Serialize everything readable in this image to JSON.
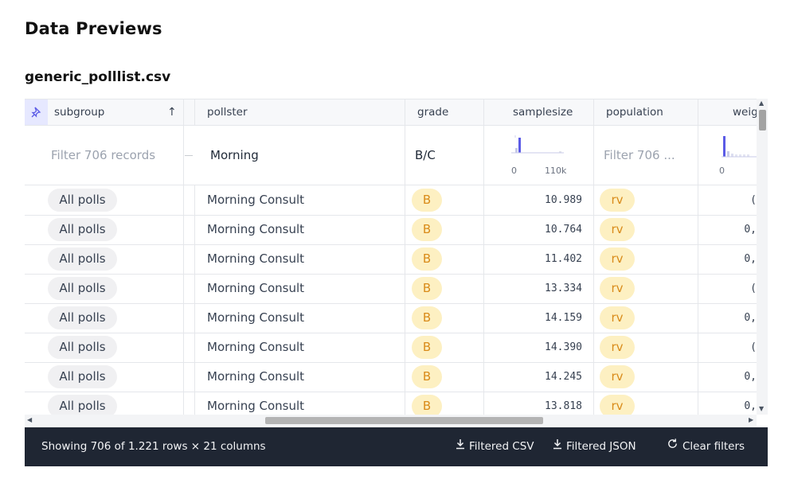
{
  "page_title": "Data Previews",
  "file_name": "generic_polllist.csv",
  "columns": [
    {
      "key": "subgroup",
      "label": "subgroup"
    },
    {
      "key": "pollster",
      "label": "pollster"
    },
    {
      "key": "grade",
      "label": "grade"
    },
    {
      "key": "samplesize",
      "label": "samplesize"
    },
    {
      "key": "population",
      "label": "population"
    },
    {
      "key": "weight",
      "label": "weig"
    }
  ],
  "filters": {
    "subgroup_placeholder": "Filter 706 records",
    "pollster_value": "Morning",
    "grade_value": "B/C",
    "samplesize_axis": {
      "min": "0",
      "max": "110k"
    },
    "population_placeholder": "Filter 706 ...",
    "weight_axis": {
      "min": "0"
    }
  },
  "rows": [
    {
      "subgroup": "All polls",
      "pollster": "Morning Consult",
      "grade": "B",
      "samplesize": "10.989",
      "population": "rv",
      "weight": "("
    },
    {
      "subgroup": "All polls",
      "pollster": "Morning Consult",
      "grade": "B",
      "samplesize": "10.764",
      "population": "rv",
      "weight": "0,"
    },
    {
      "subgroup": "All polls",
      "pollster": "Morning Consult",
      "grade": "B",
      "samplesize": "11.402",
      "population": "rv",
      "weight": "0,"
    },
    {
      "subgroup": "All polls",
      "pollster": "Morning Consult",
      "grade": "B",
      "samplesize": "13.334",
      "population": "rv",
      "weight": "("
    },
    {
      "subgroup": "All polls",
      "pollster": "Morning Consult",
      "grade": "B",
      "samplesize": "14.159",
      "population": "rv",
      "weight": "0,"
    },
    {
      "subgroup": "All polls",
      "pollster": "Morning Consult",
      "grade": "B",
      "samplesize": "14.390",
      "population": "rv",
      "weight": "("
    },
    {
      "subgroup": "All polls",
      "pollster": "Morning Consult",
      "grade": "B",
      "samplesize": "14.245",
      "population": "rv",
      "weight": "0,"
    },
    {
      "subgroup": "All polls",
      "pollster": "Morning Consult",
      "grade": "B",
      "samplesize": "13.818",
      "population": "rv",
      "weight": "0,"
    }
  ],
  "footer": {
    "info": "Showing 706 of 1.221 rows × 21 columns",
    "filtered_csv": "Filtered CSV",
    "filtered_json": "Filtered JSON",
    "clear_filters": "Clear filters"
  },
  "colors": {
    "accent": "#5b5be6",
    "pill_yellow": "#fdf0c2",
    "footer_bg": "#1f2633"
  },
  "icons": [
    "pin-icon",
    "sort-ascending-icon",
    "download-icon",
    "refresh-icon"
  ]
}
